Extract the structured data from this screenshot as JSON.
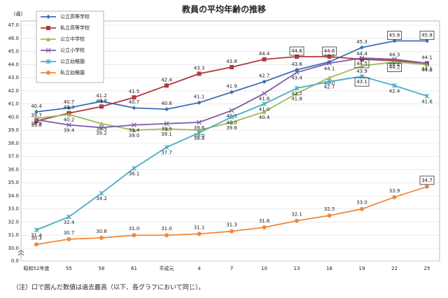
{
  "chart_data": {
    "type": "line",
    "title": "教員の平均年齢の推移",
    "categories": [
      "昭和52年度",
      "55",
      "58",
      "61",
      "平成元",
      "4",
      "7",
      "10",
      "13",
      "16",
      "19",
      "22",
      "25"
    ],
    "ylim": [
      0,
      47
    ],
    "y_break": [
      0,
      30
    ],
    "yticks": [
      {
        "value": 0,
        "label": "0.0"
      },
      {
        "value": 30,
        "label": "30.0"
      },
      {
        "value": 31,
        "label": "31.0"
      },
      {
        "value": 32,
        "label": "32.0"
      },
      {
        "value": 33,
        "label": "33.0"
      },
      {
        "value": 34,
        "label": "34.0"
      },
      {
        "value": 35,
        "label": "35.0"
      },
      {
        "value": 36,
        "label": "36.0"
      },
      {
        "value": 37,
        "label": "37.0"
      },
      {
        "value": 38,
        "label": "38.0"
      },
      {
        "value": 39,
        "label": "39.0"
      },
      {
        "value": 40,
        "label": "40.0"
      },
      {
        "value": 41,
        "label": "41.0"
      },
      {
        "value": 42,
        "label": "42.0"
      },
      {
        "value": 43,
        "label": "43.0"
      },
      {
        "value": 44,
        "label": "44.0"
      },
      {
        "value": 45,
        "label": "45.0"
      },
      {
        "value": 46,
        "label": "46.0"
      },
      {
        "value": 47,
        "label": "47.0"
      }
    ],
    "y_unit": "(歳)",
    "grid": true,
    "legend": "upper-left",
    "series": [
      {
        "name": "公立高等学校",
        "color": "#3b6db4",
        "values": [
          40.4,
          40.7,
          41.2,
          40.7,
          40.6,
          41.1,
          41.9,
          42.7,
          43.6,
          44.2,
          45.3,
          45.8,
          45.8
        ],
        "value_labels": [
          "40.4",
          "40.7",
          "41.2",
          "40.7",
          "40.6",
          "41.1",
          "41.9",
          "42.7",
          "43.6",
          "44.2",
          "45.3",
          "45.8",
          "45.8"
        ],
        "boxed": [
          11,
          12
        ]
      },
      {
        "name": "私立高等学校",
        "color": "#b03a3a",
        "values": [
          39.7,
          40.3,
          40.8,
          41.5,
          42.4,
          43.3,
          43.8,
          44.4,
          44.6,
          44.6,
          44.4,
          44.3,
          44.1
        ],
        "value_labels": [
          "39.7",
          "40.3",
          "40.8",
          "41.5",
          "42.4",
          "43.3",
          "43.8",
          "44.4",
          "44.6",
          "44.6",
          "44.4",
          "44.3",
          "44.1"
        ],
        "boxed": [
          8,
          9
        ]
      },
      {
        "name": "公立中学校",
        "color": "#9bbb59",
        "values": [
          39.9,
          40.2,
          39.5,
          39.0,
          39.1,
          39.0,
          39.6,
          40.4,
          41.8,
          43.0,
          43.9,
          44.2,
          44.0
        ],
        "value_labels": [
          "39.9",
          "40.2",
          "39.5",
          "39.0",
          "39.1",
          "39.0",
          "39.6",
          "40.4",
          "41.8",
          "43.0",
          "43.9",
          "44.2",
          "44.0"
        ],
        "boxed": [
          11
        ]
      },
      {
        "name": "公立小学校",
        "color": "#7d5ba6",
        "values": [
          39.8,
          39.4,
          39.2,
          39.4,
          39.5,
          39.6,
          40.5,
          41.8,
          43.4,
          44.1,
          44.5,
          44.4,
          44.1
        ],
        "value_labels": [
          "39.8",
          "39.4",
          "39.2",
          "39.4",
          "39.5",
          "39.6",
          "40.5",
          "41.8",
          "43.4",
          "44.1",
          "44.5",
          "44.4",
          "44.1"
        ],
        "boxed": [
          10
        ]
      },
      {
        "name": "公立幼稚園",
        "color": "#4aacc6",
        "values": [
          31.4,
          32.4,
          34.2,
          36.1,
          37.7,
          38.8,
          40.0,
          41.0,
          42.2,
          42.7,
          43.1,
          42.4,
          41.6
        ],
        "value_labels": [
          "31.4",
          "32.4",
          "34.2",
          "36.1",
          "37.7",
          "38.8",
          "40.0",
          "41.0",
          "42.2",
          "42.7",
          "43.1",
          "42.4",
          "41.6"
        ],
        "boxed": [
          10
        ]
      },
      {
        "name": "私立幼稚園",
        "color": "#f0883a",
        "values": [
          30.3,
          30.7,
          30.8,
          31.0,
          31.0,
          31.1,
          31.3,
          31.6,
          32.1,
          32.5,
          33.0,
          33.9,
          34.7
        ],
        "value_labels": [
          "30.3",
          "30.7",
          "30.8",
          "31.0",
          "31.0",
          "31.1",
          "31.3",
          "31.6",
          "32.1",
          "32.5",
          "33.0",
          "33.9",
          "34.7"
        ],
        "boxed": [
          12
        ]
      }
    ],
    "note": "（注）口で囲んだ数値は過去最高（以下、各グラフにおいて同じ）。"
  }
}
